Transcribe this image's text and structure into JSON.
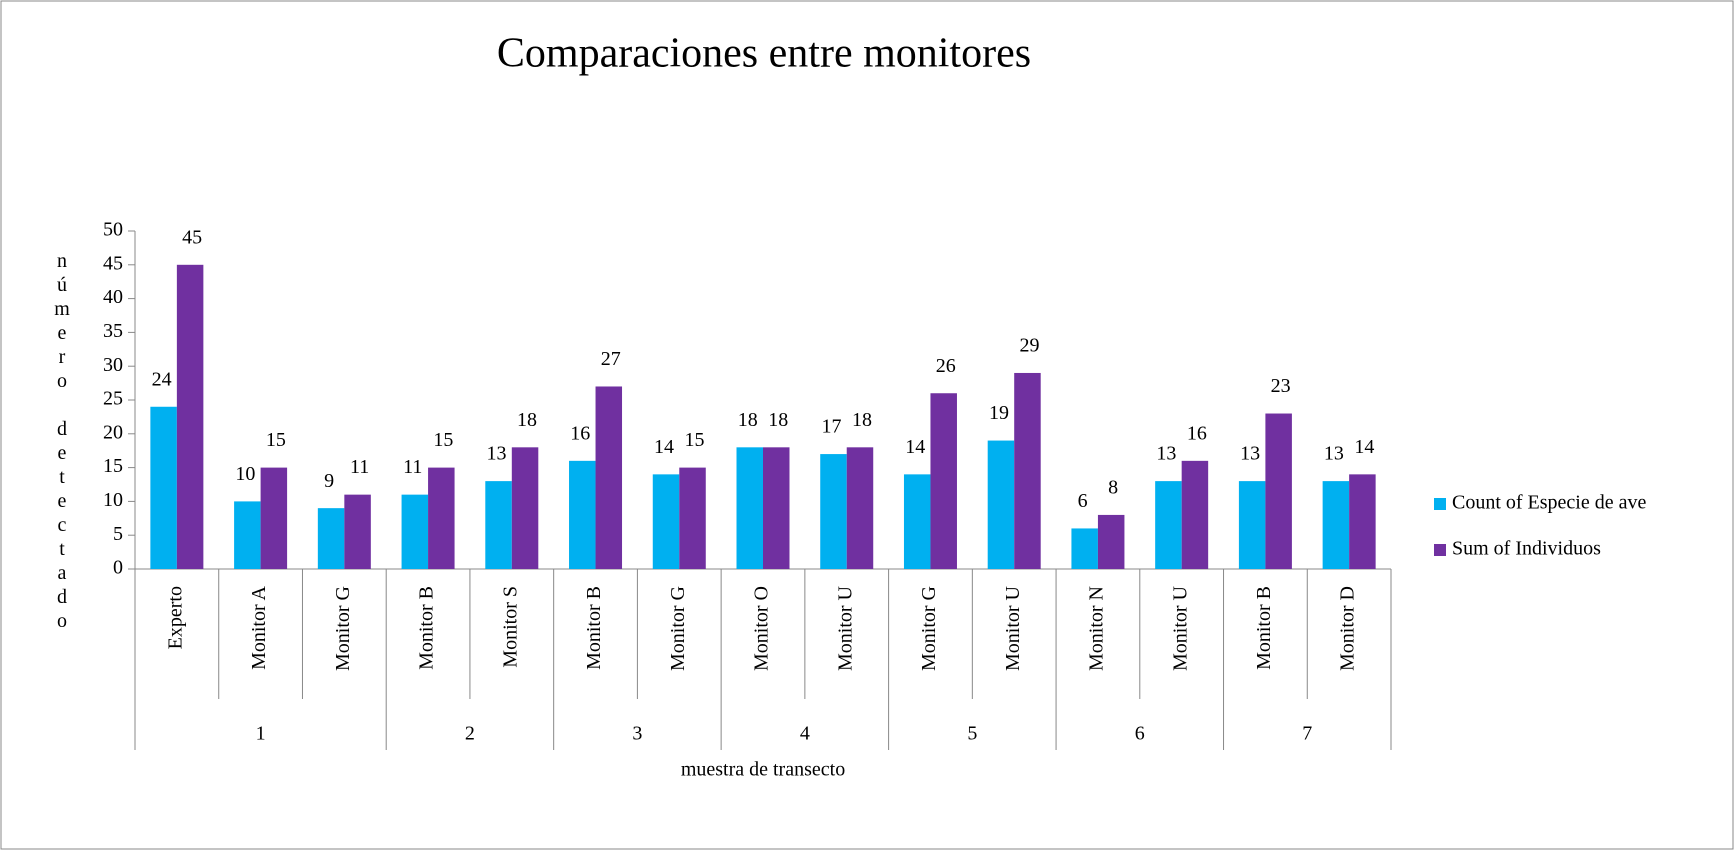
{
  "chart_data": {
    "type": "bar",
    "title": "Comparaciones entre monitores",
    "x_label": "muestra de transecto",
    "y_label": "número detectado",
    "groups": [
      {
        "name": "1",
        "categories": [
          "Experto",
          "Monitor A",
          "Monitor G"
        ]
      },
      {
        "name": "2",
        "categories": [
          "Monitor B",
          "Monitor S"
        ]
      },
      {
        "name": "3",
        "categories": [
          "Monitor B",
          "Monitor G"
        ]
      },
      {
        "name": "4",
        "categories": [
          "Monitor O",
          "Monitor U"
        ]
      },
      {
        "name": "5",
        "categories": [
          "Monitor G",
          "Monitor U"
        ]
      },
      {
        "name": "6",
        "categories": [
          "Monitor N",
          "Monitor U"
        ]
      },
      {
        "name": "7",
        "categories": [
          "Monitor B",
          "Monitor D"
        ]
      }
    ],
    "series": [
      {
        "name": "Count of Especie de ave",
        "color": "#00b0f0",
        "values": [
          24,
          10,
          9,
          11,
          13,
          16,
          14,
          18,
          17,
          14,
          19,
          6,
          13,
          13,
          13
        ]
      },
      {
        "name": "Sum of Individuos",
        "color": "#7030a0",
        "values": [
          45,
          15,
          11,
          15,
          18,
          27,
          15,
          18,
          18,
          26,
          29,
          8,
          16,
          23,
          14
        ]
      }
    ],
    "ylim": [
      0,
      50
    ],
    "yticks": [
      0,
      5,
      10,
      15,
      20,
      25,
      30,
      35,
      40,
      45,
      50
    ],
    "legend": "right"
  }
}
